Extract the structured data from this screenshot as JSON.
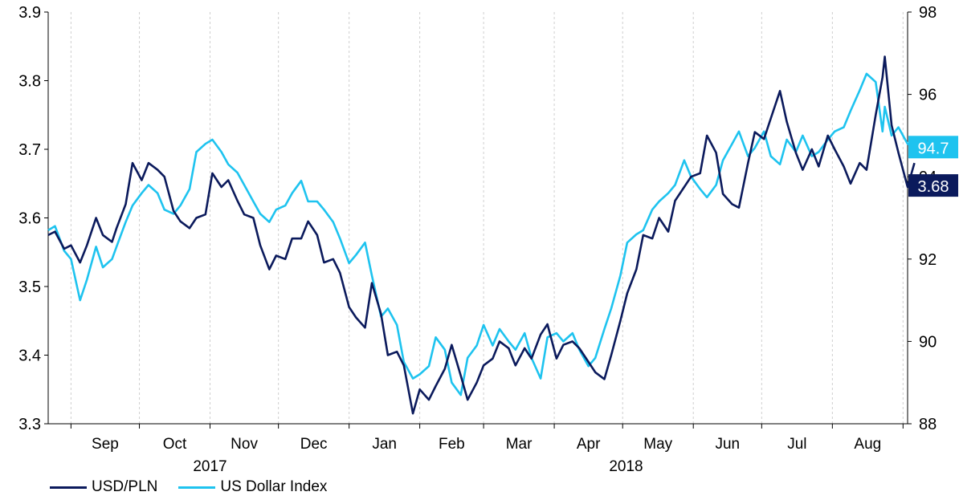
{
  "chart_data": {
    "type": "line",
    "x_ticks": [
      "Sep",
      "Oct",
      "Nov",
      "Dec",
      "Jan",
      "Feb",
      "Mar",
      "Apr",
      "May",
      "Jun",
      "Jul",
      "Aug"
    ],
    "year_labels": [
      "2017",
      "2018"
    ],
    "y_left": {
      "ylim": [
        3.3,
        3.9
      ],
      "ticks": [
        "3.3",
        "3.4",
        "3.5",
        "3.6",
        "3.7",
        "3.8",
        "3.9"
      ]
    },
    "y_right": {
      "ylim": [
        88,
        98
      ],
      "ticks": [
        "88",
        "90",
        "92",
        "94",
        "96",
        "98"
      ]
    },
    "x_range": [
      "2017-08-22",
      "2018-09-03"
    ],
    "grid": "vertical dashed between months",
    "end_labels": {
      "usdpln": "3.68",
      "dxy": "94.7"
    },
    "series": [
      {
        "name": "USD/PLN",
        "axis": "left",
        "color": "#0b1a5c",
        "points": [
          [
            "2017-08-22",
            3.575
          ],
          [
            "2017-08-25",
            3.58
          ],
          [
            "2017-08-29",
            3.555
          ],
          [
            "2017-09-01",
            3.56
          ],
          [
            "2017-09-05",
            3.535
          ],
          [
            "2017-09-08",
            3.56
          ],
          [
            "2017-09-12",
            3.6
          ],
          [
            "2017-09-15",
            3.575
          ],
          [
            "2017-09-19",
            3.565
          ],
          [
            "2017-09-21",
            3.585
          ],
          [
            "2017-09-25",
            3.62
          ],
          [
            "2017-09-28",
            3.68
          ],
          [
            "2017-10-02",
            3.655
          ],
          [
            "2017-10-05",
            3.68
          ],
          [
            "2017-10-09",
            3.67
          ],
          [
            "2017-10-12",
            3.66
          ],
          [
            "2017-10-16",
            3.61
          ],
          [
            "2017-10-19",
            3.595
          ],
          [
            "2017-10-23",
            3.585
          ],
          [
            "2017-10-26",
            3.6
          ],
          [
            "2017-10-30",
            3.605
          ],
          [
            "2017-11-02",
            3.665
          ],
          [
            "2017-11-06",
            3.645
          ],
          [
            "2017-11-09",
            3.655
          ],
          [
            "2017-11-13",
            3.625
          ],
          [
            "2017-11-16",
            3.605
          ],
          [
            "2017-11-20",
            3.6
          ],
          [
            "2017-11-23",
            3.56
          ],
          [
            "2017-11-27",
            3.525
          ],
          [
            "2017-11-30",
            3.545
          ],
          [
            "2017-12-04",
            3.54
          ],
          [
            "2017-12-07",
            3.57
          ],
          [
            "2017-12-11",
            3.57
          ],
          [
            "2017-12-14",
            3.595
          ],
          [
            "2017-12-18",
            3.575
          ],
          [
            "2017-12-21",
            3.535
          ],
          [
            "2017-12-25",
            3.54
          ],
          [
            "2017-12-28",
            3.52
          ],
          [
            "2018-01-01",
            3.47
          ],
          [
            "2018-01-04",
            3.455
          ],
          [
            "2018-01-08",
            3.44
          ],
          [
            "2018-01-11",
            3.505
          ],
          [
            "2018-01-15",
            3.46
          ],
          [
            "2018-01-18",
            3.4
          ],
          [
            "2018-01-22",
            3.405
          ],
          [
            "2018-01-25",
            3.385
          ],
          [
            "2018-01-29",
            3.315
          ],
          [
            "2018-02-01",
            3.35
          ],
          [
            "2018-02-05",
            3.335
          ],
          [
            "2018-02-08",
            3.355
          ],
          [
            "2018-02-12",
            3.38
          ],
          [
            "2018-02-15",
            3.415
          ],
          [
            "2018-02-19",
            3.37
          ],
          [
            "2018-02-22",
            3.335
          ],
          [
            "2018-02-26",
            3.36
          ],
          [
            "2018-03-01",
            3.385
          ],
          [
            "2018-03-05",
            3.395
          ],
          [
            "2018-03-08",
            3.42
          ],
          [
            "2018-03-12",
            3.41
          ],
          [
            "2018-03-15",
            3.385
          ],
          [
            "2018-03-19",
            3.41
          ],
          [
            "2018-03-22",
            3.395
          ],
          [
            "2018-03-26",
            3.43
          ],
          [
            "2018-03-29",
            3.445
          ],
          [
            "2018-04-02",
            3.395
          ],
          [
            "2018-04-05",
            3.415
          ],
          [
            "2018-04-09",
            3.42
          ],
          [
            "2018-04-12",
            3.41
          ],
          [
            "2018-04-16",
            3.39
          ],
          [
            "2018-04-19",
            3.375
          ],
          [
            "2018-04-23",
            3.365
          ],
          [
            "2018-04-26",
            3.4
          ],
          [
            "2018-04-30",
            3.45
          ],
          [
            "2018-05-03",
            3.49
          ],
          [
            "2018-05-07",
            3.525
          ],
          [
            "2018-05-10",
            3.575
          ],
          [
            "2018-05-14",
            3.57
          ],
          [
            "2018-05-17",
            3.6
          ],
          [
            "2018-05-21",
            3.58
          ],
          [
            "2018-05-24",
            3.625
          ],
          [
            "2018-05-28",
            3.645
          ],
          [
            "2018-05-31",
            3.66
          ],
          [
            "2018-06-04",
            3.665
          ],
          [
            "2018-06-07",
            3.72
          ],
          [
            "2018-06-11",
            3.695
          ],
          [
            "2018-06-14",
            3.635
          ],
          [
            "2018-06-18",
            3.62
          ],
          [
            "2018-06-21",
            3.615
          ],
          [
            "2018-06-25",
            3.68
          ],
          [
            "2018-06-28",
            3.725
          ],
          [
            "2018-07-02",
            3.715
          ],
          [
            "2018-07-05",
            3.745
          ],
          [
            "2018-07-09",
            3.785
          ],
          [
            "2018-07-12",
            3.74
          ],
          [
            "2018-07-16",
            3.695
          ],
          [
            "2018-07-19",
            3.67
          ],
          [
            "2018-07-23",
            3.7
          ],
          [
            "2018-07-26",
            3.675
          ],
          [
            "2018-07-30",
            3.72
          ],
          [
            "2018-08-02",
            3.7
          ],
          [
            "2018-08-06",
            3.675
          ],
          [
            "2018-08-09",
            3.65
          ],
          [
            "2018-08-13",
            3.68
          ],
          [
            "2018-08-16",
            3.67
          ],
          [
            "2018-08-20",
            3.75
          ],
          [
            "2018-08-23",
            3.805
          ],
          [
            "2018-08-24",
            3.835
          ],
          [
            "2018-08-27",
            3.735
          ],
          [
            "2018-08-30",
            3.695
          ],
          [
            "2018-09-03",
            3.645
          ],
          [
            "2018-09-06",
            3.68
          ]
        ]
      },
      {
        "name": "US Dollar Index",
        "axis": "right",
        "color": "#1ec3ef",
        "points": [
          [
            "2017-08-22",
            92.7
          ],
          [
            "2017-08-25",
            92.8
          ],
          [
            "2017-08-29",
            92.2
          ],
          [
            "2017-09-01",
            92.0
          ],
          [
            "2017-09-05",
            91.0
          ],
          [
            "2017-09-08",
            91.5
          ],
          [
            "2017-09-12",
            92.3
          ],
          [
            "2017-09-15",
            91.8
          ],
          [
            "2017-09-19",
            92.0
          ],
          [
            "2017-09-21",
            92.3
          ],
          [
            "2017-09-25",
            92.9
          ],
          [
            "2017-09-28",
            93.3
          ],
          [
            "2017-10-02",
            93.6
          ],
          [
            "2017-10-05",
            93.8
          ],
          [
            "2017-10-09",
            93.6
          ],
          [
            "2017-10-12",
            93.2
          ],
          [
            "2017-10-16",
            93.1
          ],
          [
            "2017-10-19",
            93.3
          ],
          [
            "2017-10-23",
            93.7
          ],
          [
            "2017-10-26",
            94.6
          ],
          [
            "2017-10-30",
            94.8
          ],
          [
            "2017-11-02",
            94.9
          ],
          [
            "2017-11-06",
            94.6
          ],
          [
            "2017-11-09",
            94.3
          ],
          [
            "2017-11-13",
            94.1
          ],
          [
            "2017-11-16",
            93.8
          ],
          [
            "2017-11-20",
            93.4
          ],
          [
            "2017-11-23",
            93.1
          ],
          [
            "2017-11-27",
            92.9
          ],
          [
            "2017-11-30",
            93.2
          ],
          [
            "2017-12-04",
            93.3
          ],
          [
            "2017-12-07",
            93.6
          ],
          [
            "2017-12-11",
            93.9
          ],
          [
            "2017-12-14",
            93.4
          ],
          [
            "2017-12-18",
            93.4
          ],
          [
            "2017-12-21",
            93.2
          ],
          [
            "2017-12-25",
            92.9
          ],
          [
            "2017-12-28",
            92.5
          ],
          [
            "2018-01-01",
            91.9
          ],
          [
            "2018-01-04",
            92.1
          ],
          [
            "2018-01-08",
            92.4
          ],
          [
            "2018-01-11",
            91.6
          ],
          [
            "2018-01-15",
            90.6
          ],
          [
            "2018-01-18",
            90.8
          ],
          [
            "2018-01-22",
            90.4
          ],
          [
            "2018-01-25",
            89.5
          ],
          [
            "2018-01-29",
            89.1
          ],
          [
            "2018-02-01",
            89.2
          ],
          [
            "2018-02-05",
            89.4
          ],
          [
            "2018-02-08",
            90.1
          ],
          [
            "2018-02-12",
            89.8
          ],
          [
            "2018-02-15",
            89.0
          ],
          [
            "2018-02-19",
            88.7
          ],
          [
            "2018-02-22",
            89.6
          ],
          [
            "2018-02-26",
            89.9
          ],
          [
            "2018-03-01",
            90.4
          ],
          [
            "2018-03-05",
            89.9
          ],
          [
            "2018-03-08",
            90.3
          ],
          [
            "2018-03-12",
            90.0
          ],
          [
            "2018-03-15",
            89.8
          ],
          [
            "2018-03-19",
            90.2
          ],
          [
            "2018-03-22",
            89.6
          ],
          [
            "2018-03-26",
            89.1
          ],
          [
            "2018-03-29",
            90.1
          ],
          [
            "2018-04-02",
            90.2
          ],
          [
            "2018-04-05",
            90.0
          ],
          [
            "2018-04-09",
            90.2
          ],
          [
            "2018-04-12",
            89.8
          ],
          [
            "2018-04-16",
            89.4
          ],
          [
            "2018-04-19",
            89.6
          ],
          [
            "2018-04-23",
            90.3
          ],
          [
            "2018-04-26",
            90.8
          ],
          [
            "2018-04-30",
            91.6
          ],
          [
            "2018-05-03",
            92.4
          ],
          [
            "2018-05-07",
            92.6
          ],
          [
            "2018-05-10",
            92.7
          ],
          [
            "2018-05-14",
            93.2
          ],
          [
            "2018-05-17",
            93.4
          ],
          [
            "2018-05-21",
            93.6
          ],
          [
            "2018-05-24",
            93.8
          ],
          [
            "2018-05-28",
            94.4
          ],
          [
            "2018-05-31",
            94.0
          ],
          [
            "2018-06-04",
            93.7
          ],
          [
            "2018-06-07",
            93.5
          ],
          [
            "2018-06-11",
            93.8
          ],
          [
            "2018-06-14",
            94.4
          ],
          [
            "2018-06-18",
            94.8
          ],
          [
            "2018-06-21",
            95.1
          ],
          [
            "2018-06-25",
            94.5
          ],
          [
            "2018-06-28",
            94.7
          ],
          [
            "2018-07-02",
            95.1
          ],
          [
            "2018-07-05",
            94.5
          ],
          [
            "2018-07-09",
            94.3
          ],
          [
            "2018-07-12",
            94.9
          ],
          [
            "2018-07-16",
            94.6
          ],
          [
            "2018-07-19",
            95.0
          ],
          [
            "2018-07-23",
            94.5
          ],
          [
            "2018-07-26",
            94.6
          ],
          [
            "2018-07-30",
            94.9
          ],
          [
            "2018-08-02",
            95.1
          ],
          [
            "2018-08-06",
            95.2
          ],
          [
            "2018-08-09",
            95.6
          ],
          [
            "2018-08-13",
            96.1
          ],
          [
            "2018-08-16",
            96.5
          ],
          [
            "2018-08-20",
            96.3
          ],
          [
            "2018-08-23",
            95.1
          ],
          [
            "2018-08-24",
            95.7
          ],
          [
            "2018-08-27",
            95.0
          ],
          [
            "2018-08-30",
            95.2
          ],
          [
            "2018-09-03",
            94.8
          ],
          [
            "2018-09-06",
            94.7
          ]
        ]
      }
    ]
  },
  "legend": {
    "items": [
      {
        "label": "USD/PLN",
        "color": "#0b1a5c"
      },
      {
        "label": "US Dollar Index",
        "color": "#1ec3ef"
      }
    ]
  }
}
